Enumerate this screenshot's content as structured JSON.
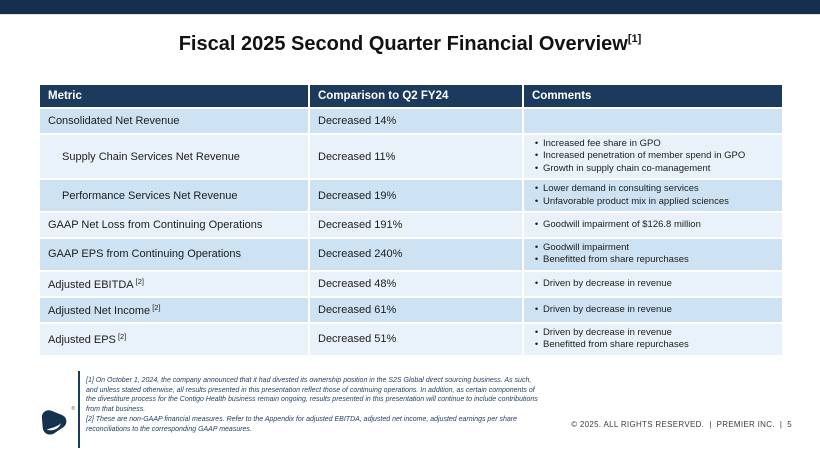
{
  "title": {
    "text": "Fiscal 2025 Second Quarter Financial Overview",
    "superscript": "[1]"
  },
  "table": {
    "bullet_char": "•",
    "headers": [
      "Metric",
      "Comparison to Q2 FY24",
      "Comments"
    ],
    "rows": [
      {
        "metric": "Consolidated Net Revenue",
        "superscript": "",
        "indented": false,
        "comparison": "Decreased 14%",
        "comments": []
      },
      {
        "metric": "Supply Chain Services Net Revenue",
        "superscript": "",
        "indented": true,
        "comparison": "Decreased 11%",
        "comments": [
          "Increased fee share in GPO",
          "Increased penetration of member spend in GPO",
          "Growth in supply chain co-management"
        ]
      },
      {
        "metric": "Performance Services Net Revenue",
        "superscript": "",
        "indented": true,
        "comparison": "Decreased 19%",
        "comments": [
          "Lower demand in consulting services",
          "Unfavorable product mix in applied sciences"
        ]
      },
      {
        "metric": "GAAP Net Loss from Continuing Operations",
        "superscript": "",
        "indented": false,
        "comparison": "Decreased 191%",
        "comments": [
          "Goodwill impairment of $126.8 million"
        ]
      },
      {
        "metric": "GAAP EPS from Continuing Operations",
        "superscript": "",
        "indented": false,
        "comparison": "Decreased 240%",
        "comments": [
          "Goodwill impairment",
          "Benefitted from share repurchases"
        ]
      },
      {
        "metric": "Adjusted EBITDA",
        "superscript": "[2]",
        "indented": false,
        "comparison": "Decreased 48%",
        "comments": [
          "Driven by decrease in revenue"
        ]
      },
      {
        "metric": "Adjusted Net Income",
        "superscript": "[2]",
        "indented": false,
        "comparison": "Decreased 61%",
        "comments": [
          "Driven by decrease in revenue"
        ]
      },
      {
        "metric": "Adjusted EPS",
        "superscript": "[2]",
        "indented": false,
        "comparison": "Decreased 51%",
        "comments": [
          "Driven by decrease in revenue",
          "Benefitted from share repurchases"
        ]
      }
    ]
  },
  "footnotes": [
    "[1] On October 1, 2024, the company announced that it had divested its ownership position in the S2S Global direct sourcing business. As such, and unless stated otherwise, all results presented in this presentation reflect those of continuing operations. In addition, as certain components of the divestiture process for the Contigo Health business remain ongoing, results presented in this presentation will continue to include contributions from that business.",
    "[2] These are non-GAAP financial measures. Refer to the Appendix for adjusted EBITDA, adjusted net income, adjusted earnings per share reconciliations to the corresponding GAAP measures."
  ],
  "footer": {
    "copyright": "© 2025. ALL RIGHTS RESERVED.",
    "separator": "|",
    "company": "PREMIER INC.",
    "page": "5"
  },
  "logo": {
    "registered_mark": "®"
  },
  "colors": {
    "top_bar": "#152f4e",
    "header_bg": "#1b3a5c",
    "band_dark": "#cde2f2",
    "band_light": "#e9f2fa",
    "footnote_text": "#1e3c5f",
    "logo_navy": "#16324f"
  }
}
